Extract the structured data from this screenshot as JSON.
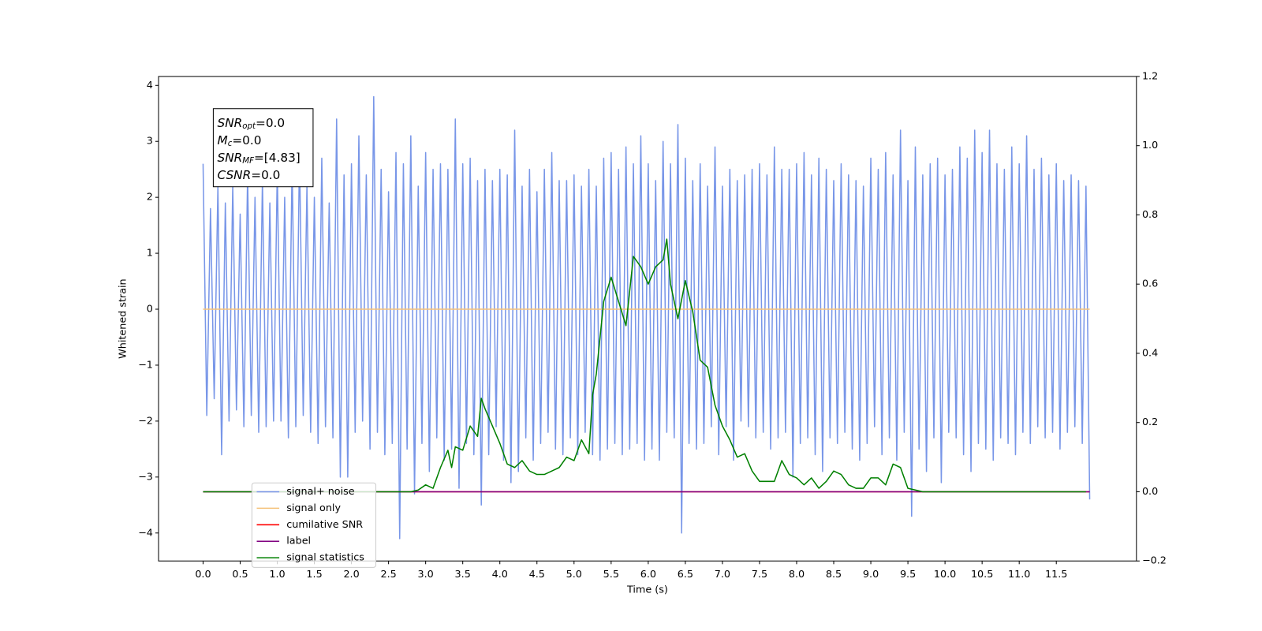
{
  "chart_data": {
    "type": "line",
    "xlabel": "Time (s)",
    "ylabel": "Whitened strain",
    "xlim": [
      -0.6,
      12.58
    ],
    "ylim": [
      -4.5,
      4.16
    ],
    "y2lim": [
      -0.2,
      1.2
    ],
    "xticks": [
      {
        "value": 0,
        "label": "0.0"
      },
      0.5,
      {
        "value": 1,
        "label": "1.0"
      },
      1.5,
      {
        "value": 2,
        "label": "2.0"
      },
      2.5,
      {
        "value": 3,
        "label": "3.0"
      },
      3.5,
      {
        "value": 4,
        "label": "4.0"
      },
      4.5,
      {
        "value": 5,
        "label": "5.0"
      },
      5.5,
      {
        "value": 6,
        "label": "6.0"
      },
      6.5,
      {
        "value": 7,
        "label": "7.0"
      },
      7.5,
      {
        "value": 8,
        "label": "8.0"
      },
      8.5,
      {
        "value": 9,
        "label": "9.0"
      },
      9.5,
      {
        "value": 10,
        "label": "10.0"
      },
      10.5,
      {
        "value": 11,
        "label": "11.0"
      },
      11.5
    ],
    "yticks": [
      {
        "value": -4,
        "label": "−4"
      },
      {
        "value": -3,
        "label": "−3"
      },
      {
        "value": -2,
        "label": "−2"
      },
      {
        "value": -1,
        "label": "−1"
      },
      0,
      1,
      2,
      3,
      4
    ],
    "y2ticks": [
      {
        "value": -0.2,
        "label": "−0.2"
      },
      {
        "value": 0,
        "label": "0.0"
      },
      0.2,
      0.4,
      0.6,
      0.8,
      {
        "value": 1,
        "label": "1.0"
      },
      1.2
    ],
    "legend_loc": "lower left",
    "annotation_lines": [
      {
        "base": "SNR",
        "sub": "opt",
        "text": "=0.0"
      },
      {
        "base": "M",
        "sub": "c",
        "text": "=0.0"
      },
      {
        "base": "SNR",
        "sub": "MF",
        "text": "=[4.83]"
      },
      {
        "base": "CSNR",
        "text": "=0.0"
      }
    ],
    "series": [
      {
        "name": "signal+ noise",
        "color": "#7896e8",
        "x": [
          0,
          0.05,
          0.1,
          0.15,
          0.2,
          0.25,
          0.3,
          0.35,
          0.4,
          0.45,
          0.5,
          0.55,
          0.6,
          0.65,
          0.7,
          0.75,
          0.8,
          0.85,
          0.9,
          0.95,
          1,
          1.05,
          1.1,
          1.15,
          1.2,
          1.25,
          1.3,
          1.35,
          1.4,
          1.45,
          1.5,
          1.55,
          1.6,
          1.65,
          1.7,
          1.75,
          1.8,
          1.85,
          1.9,
          1.95,
          2,
          2.05,
          2.1,
          2.15,
          2.2,
          2.25,
          2.3,
          2.35,
          2.4,
          2.45,
          2.5,
          2.55,
          2.6,
          2.65,
          2.7,
          2.75,
          2.8,
          2.85,
          2.9,
          2.95,
          3,
          3.05,
          3.1,
          3.15,
          3.2,
          3.25,
          3.3,
          3.35,
          3.4,
          3.45,
          3.5,
          3.55,
          3.6,
          3.65,
          3.7,
          3.75,
          3.8,
          3.85,
          3.9,
          3.95,
          4,
          4.05,
          4.1,
          4.15,
          4.2,
          4.25,
          4.3,
          4.35,
          4.4,
          4.45,
          4.5,
          4.55,
          4.6,
          4.65,
          4.7,
          4.75,
          4.8,
          4.85,
          4.9,
          4.95,
          5,
          5.05,
          5.1,
          5.15,
          5.2,
          5.25,
          5.3,
          5.35,
          5.4,
          5.45,
          5.5,
          5.55,
          5.6,
          5.65,
          5.7,
          5.75,
          5.8,
          5.85,
          5.9,
          5.95,
          6,
          6.05,
          6.1,
          6.15,
          6.2,
          6.25,
          6.3,
          6.35,
          6.4,
          6.45,
          6.5,
          6.55,
          6.6,
          6.65,
          6.7,
          6.75,
          6.8,
          6.85,
          6.9,
          6.95,
          7,
          7.05,
          7.1,
          7.15,
          7.2,
          7.25,
          7.3,
          7.35,
          7.4,
          7.45,
          7.5,
          7.55,
          7.6,
          7.65,
          7.7,
          7.75,
          7.8,
          7.85,
          7.9,
          7.95,
          8,
          8.05,
          8.1,
          8.15,
          8.2,
          8.25,
          8.3,
          8.35,
          8.4,
          8.45,
          8.5,
          8.55,
          8.6,
          8.65,
          8.7,
          8.75,
          8.8,
          8.85,
          8.9,
          8.95,
          9,
          9.05,
          9.1,
          9.15,
          9.2,
          9.25,
          9.3,
          9.35,
          9.4,
          9.45,
          9.5,
          9.55,
          9.6,
          9.65,
          9.7,
          9.75,
          9.8,
          9.85,
          9.9,
          9.95,
          10,
          10.05,
          10.1,
          10.15,
          10.2,
          10.25,
          10.3,
          10.35,
          10.4,
          10.45,
          10.5,
          10.55,
          10.6,
          10.65,
          10.7,
          10.75,
          10.8,
          10.85,
          10.9,
          10.95,
          11,
          11.05,
          11.1,
          11.15,
          11.2,
          11.25,
          11.3,
          11.35,
          11.4,
          11.45,
          11.5,
          11.55,
          11.6,
          11.65,
          11.7,
          11.75,
          11.8,
          11.85,
          11.9,
          11.95
        ],
        "values": [
          2.6,
          -1.9,
          1.8,
          -1.6,
          2.2,
          -2.6,
          1.9,
          -2.0,
          2.2,
          -1.8,
          1.7,
          -2.1,
          2.4,
          -1.9,
          2.0,
          -2.2,
          2.3,
          -2.1,
          1.9,
          -2.0,
          2.5,
          -2.0,
          2.0,
          -2.3,
          2.6,
          -2.1,
          2.8,
          -1.9,
          2.2,
          -2.2,
          2.0,
          -2.4,
          2.7,
          -2.1,
          1.9,
          -2.3,
          3.4,
          -3.0,
          2.4,
          -3.0,
          2.6,
          -2.2,
          3.1,
          -2.0,
          2.4,
          -2.5,
          3.8,
          -2.2,
          2.5,
          -2.6,
          2.1,
          -2.4,
          2.8,
          -4.1,
          2.6,
          -2.5,
          3.1,
          -3.3,
          2.2,
          -2.4,
          2.8,
          -2.9,
          2.5,
          -2.3,
          2.6,
          -2.7,
          2.5,
          -2.5,
          3.4,
          -3.2,
          2.6,
          -2.4,
          2.7,
          -2.6,
          2.3,
          -3.5,
          2.5,
          -2.6,
          2.3,
          -2.1,
          2.5,
          -2.7,
          2.4,
          -3.1,
          3.2,
          -2.9,
          2.2,
          -2.3,
          2.5,
          -2.7,
          2.1,
          -2.4,
          2.5,
          -2.2,
          2.8,
          -2.5,
          2.3,
          -2.6,
          2.3,
          -2.3,
          2.4,
          -2.6,
          2.2,
          -2.2,
          2.5,
          -2.6,
          2.2,
          -2.7,
          2.7,
          -2.5,
          2.8,
          -2.4,
          2.5,
          -2.6,
          2.9,
          -2.5,
          2.6,
          -2.4,
          3.1,
          -2.7,
          2.6,
          -2.5,
          2.3,
          -2.7,
          3.0,
          -2.2,
          2.6,
          -2.3,
          3.3,
          -4.0,
          2.7,
          -2.4,
          2.3,
          -2.5,
          2.6,
          -2.4,
          2.2,
          -2.1,
          2.9,
          -2.6,
          2.2,
          -2.1,
          2.5,
          -2.7,
          2.3,
          -2.0,
          2.4,
          -2.1,
          2.5,
          -2.3,
          2.6,
          -2.2,
          2.4,
          -2.5,
          2.9,
          -2.3,
          2.5,
          -2.2,
          2.5,
          -3.0,
          2.6,
          -2.4,
          2.8,
          -2.3,
          2.4,
          -2.6,
          2.7,
          -2.9,
          2.5,
          -2.3,
          2.3,
          -2.4,
          2.6,
          -2.2,
          2.4,
          -2.5,
          2.3,
          -2.7,
          2.2,
          -2.4,
          2.7,
          -2.1,
          2.5,
          -2.6,
          2.8,
          -2.3,
          2.4,
          -2.7,
          3.2,
          -2.2,
          2.3,
          -3.7,
          2.9,
          -2.5,
          2.4,
          -2.9,
          2.6,
          -2.3,
          2.7,
          -3.1,
          2.4,
          -2.2,
          2.5,
          -2.3,
          2.9,
          -2.6,
          2.7,
          -2.9,
          3.2,
          -2.4,
          2.8,
          -2.5,
          3.2,
          -2.7,
          2.6,
          -2.3,
          2.5,
          -2.4,
          2.9,
          -2.6,
          2.6,
          -2.2,
          3.1,
          -2.4,
          2.5,
          -2.1,
          2.7,
          -2.3,
          2.4,
          -2.2,
          2.6,
          -2.5,
          2.3,
          -2.2,
          2.4,
          -2.1,
          2.3,
          -2.4,
          2.2,
          -3.4
        ]
      },
      {
        "name": "signal only",
        "color": "#f5c27a",
        "x": [
          0,
          11.95
        ],
        "values": [
          0,
          0
        ]
      },
      {
        "name": "cumilative SNR",
        "color": "#ff0000",
        "axis": "y2",
        "x": [
          0,
          11.95
        ],
        "values": [
          0,
          0
        ]
      },
      {
        "name": "label",
        "color": "#800080",
        "axis": "y2",
        "x": [
          0,
          11.95
        ],
        "values": [
          0,
          0
        ]
      },
      {
        "name": "signal statistics",
        "color": "#008000",
        "axis": "y2",
        "x": [
          0,
          2.8,
          2.9,
          3.0,
          3.1,
          3.2,
          3.3,
          3.35,
          3.4,
          3.5,
          3.6,
          3.7,
          3.75,
          3.8,
          3.9,
          4.0,
          4.1,
          4.2,
          4.3,
          4.4,
          4.5,
          4.6,
          4.7,
          4.8,
          4.9,
          5.0,
          5.1,
          5.2,
          5.25,
          5.3,
          5.4,
          5.5,
          5.6,
          5.7,
          5.8,
          5.9,
          6.0,
          6.1,
          6.2,
          6.25,
          6.3,
          6.4,
          6.5,
          6.6,
          6.7,
          6.8,
          6.9,
          7.0,
          7.1,
          7.2,
          7.3,
          7.4,
          7.5,
          7.6,
          7.7,
          7.8,
          7.9,
          8.0,
          8.1,
          8.2,
          8.3,
          8.4,
          8.5,
          8.6,
          8.7,
          8.8,
          8.9,
          9.0,
          9.1,
          9.2,
          9.3,
          9.4,
          9.5,
          9.6,
          9.7,
          11.9
        ],
        "values": [
          0,
          0,
          0.005,
          0.02,
          0.01,
          0.07,
          0.12,
          0.07,
          0.13,
          0.12,
          0.19,
          0.16,
          0.27,
          0.24,
          0.19,
          0.14,
          0.08,
          0.07,
          0.09,
          0.06,
          0.05,
          0.05,
          0.06,
          0.07,
          0.1,
          0.09,
          0.15,
          0.11,
          0.28,
          0.34,
          0.55,
          0.62,
          0.55,
          0.48,
          0.68,
          0.65,
          0.6,
          0.65,
          0.67,
          0.73,
          0.6,
          0.5,
          0.61,
          0.52,
          0.38,
          0.36,
          0.25,
          0.19,
          0.15,
          0.1,
          0.11,
          0.06,
          0.03,
          0.03,
          0.03,
          0.09,
          0.05,
          0.04,
          0.02,
          0.04,
          0.01,
          0.03,
          0.06,
          0.05,
          0.02,
          0.01,
          0.01,
          0.04,
          0.04,
          0.02,
          0.08,
          0.07,
          0.01,
          0.005,
          0,
          0
        ]
      }
    ]
  }
}
